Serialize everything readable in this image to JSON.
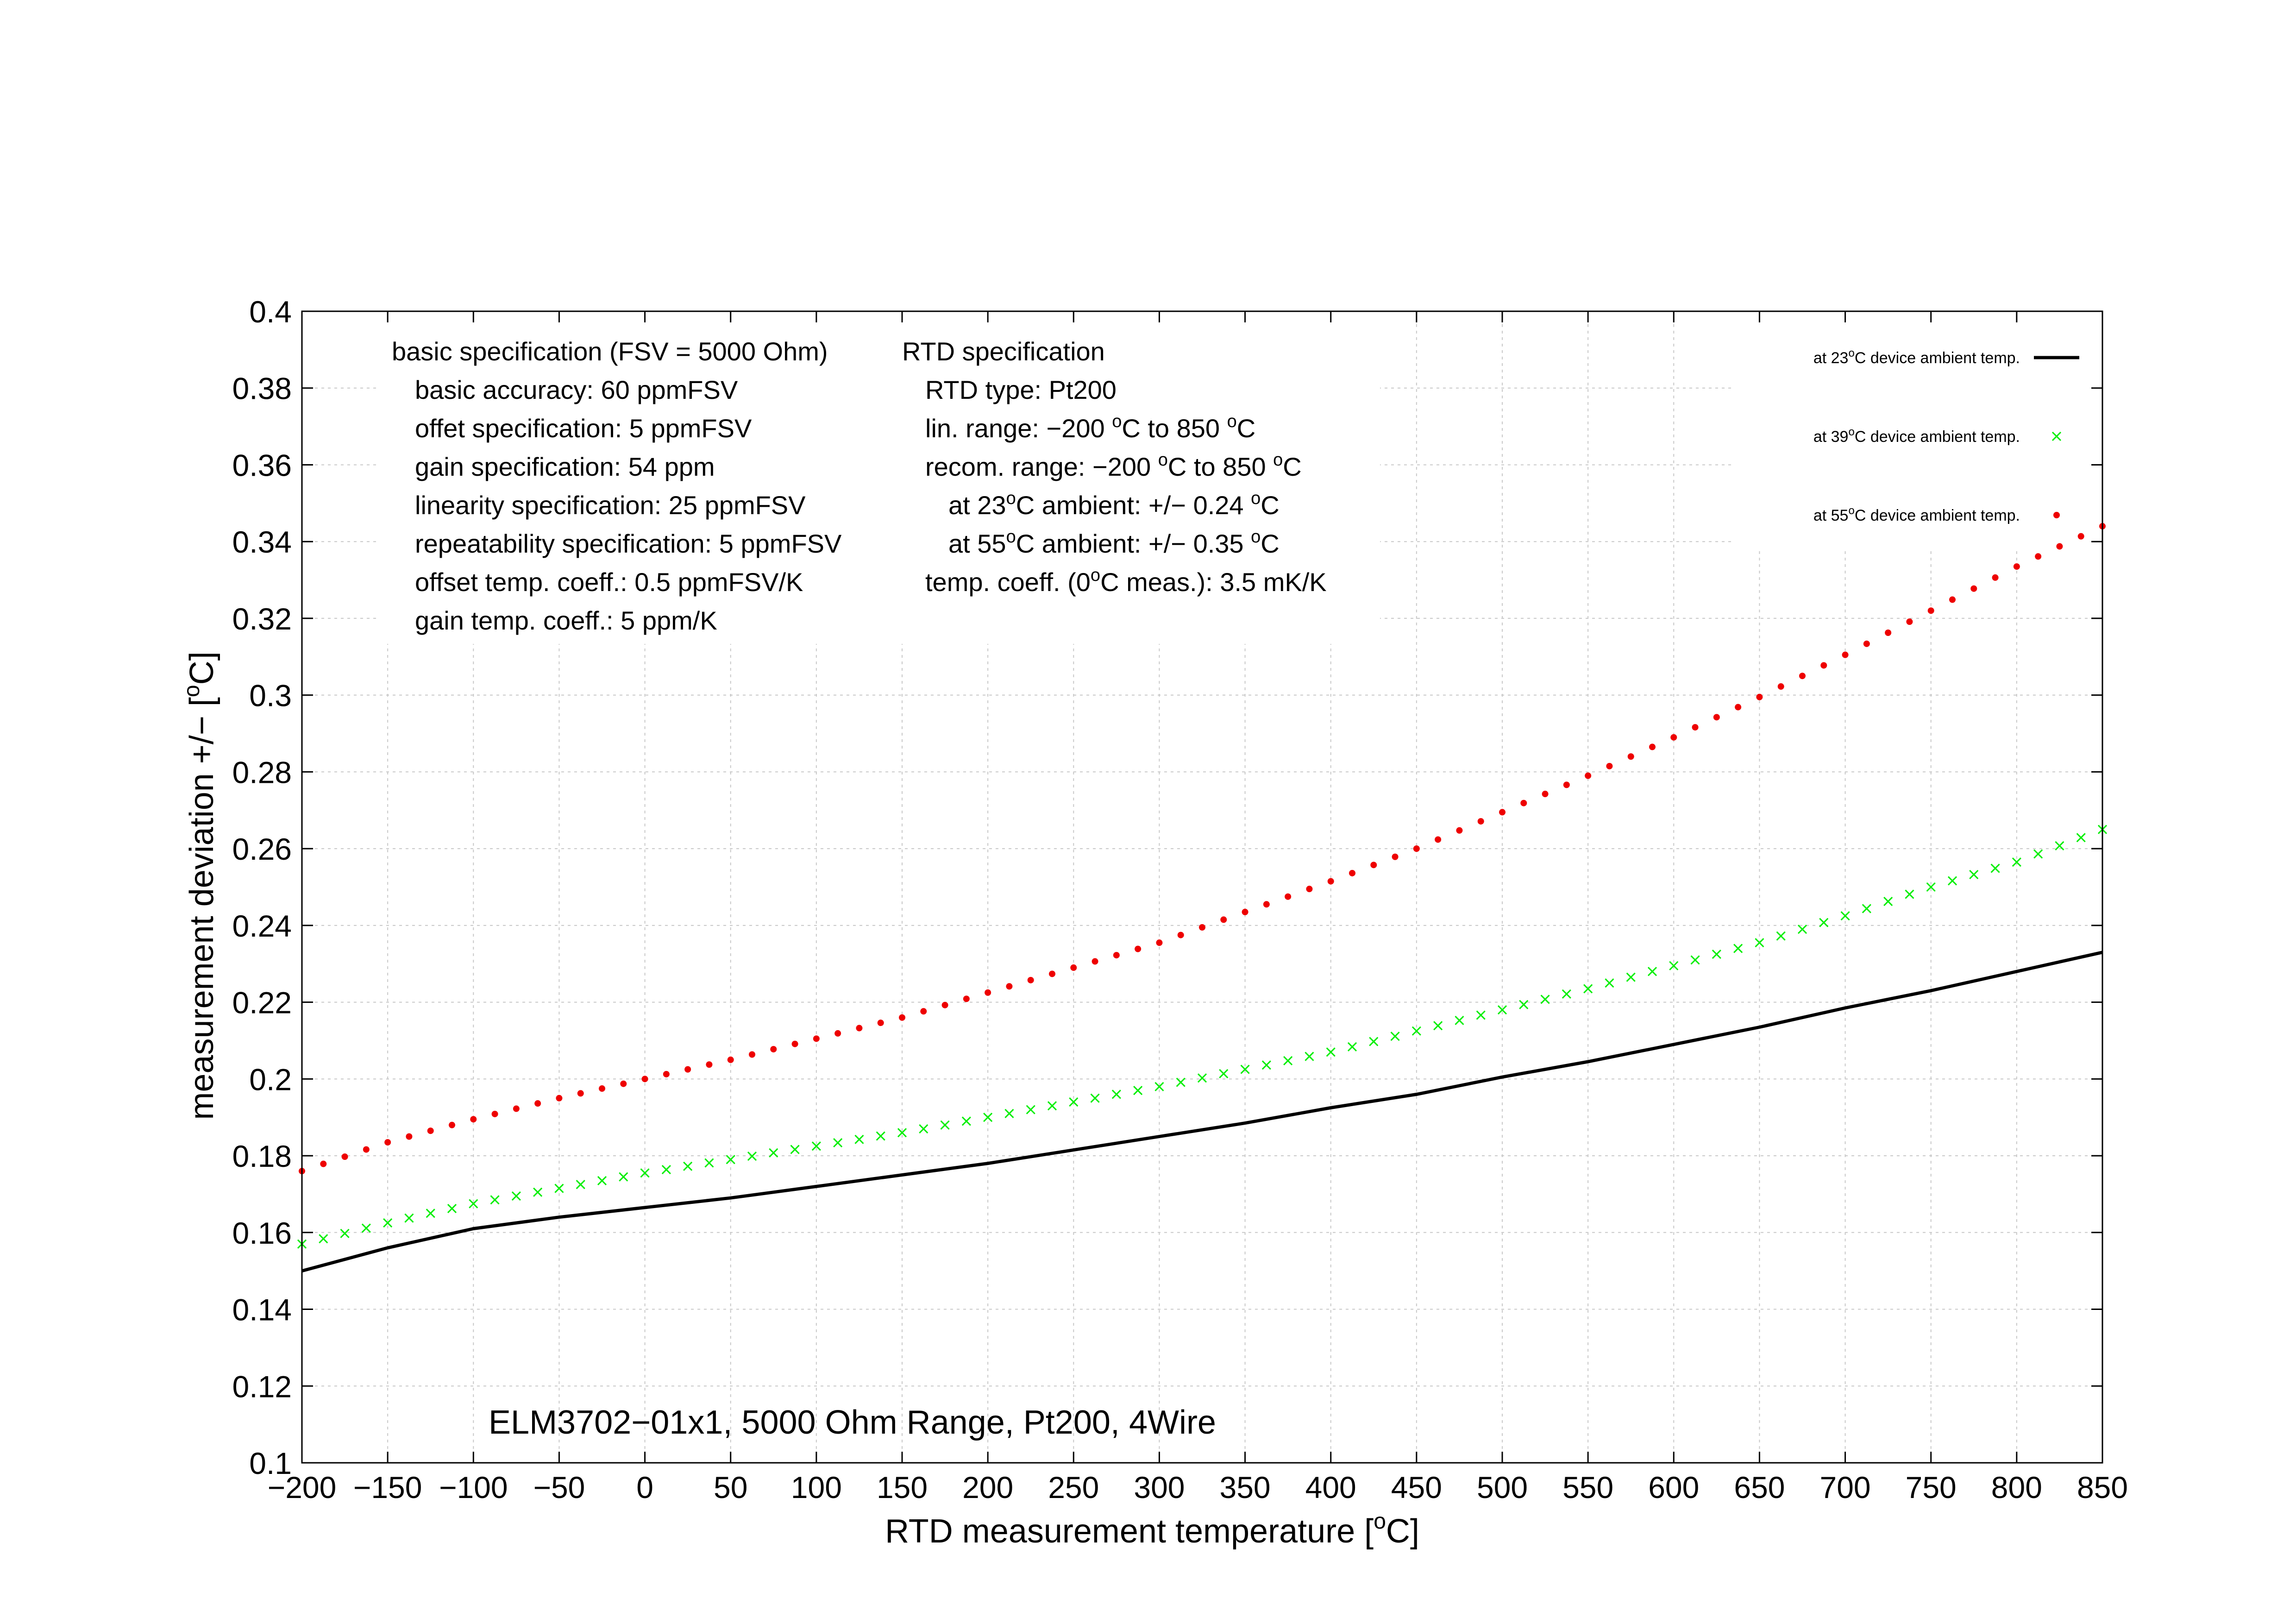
{
  "chart_data": {
    "type": "line",
    "title": "ELM3702−01x1, 5000 Ohm Range, Pt200, 4Wire",
    "xlabel": "RTD measurement temperature [",
    "xlabel_sup": "o",
    "xlabel_end": "C]",
    "ylabel": "measurement deviation +/− [",
    "ylabel_sup": "o",
    "ylabel_end": "C]",
    "xlim": [
      -200,
      850
    ],
    "ylim": [
      0.1,
      0.4
    ],
    "xticks": [
      "−200",
      "−150",
      "−100",
      "−50",
      "0",
      "50",
      "100",
      "150",
      "200",
      "250",
      "300",
      "350",
      "400",
      "450",
      "500",
      "550",
      "600",
      "650",
      "700",
      "750",
      "800",
      "850"
    ],
    "yticks": [
      "0.1",
      "0.12",
      "0.14",
      "0.16",
      "0.18",
      "0.2",
      "0.22",
      "0.24",
      "0.26",
      "0.28",
      "0.3",
      "0.32",
      "0.34",
      "0.36",
      "0.38",
      "0.4"
    ],
    "grid": true,
    "legend_position": "top-right",
    "x": [
      -200,
      -150,
      -100,
      -50,
      0,
      50,
      100,
      150,
      200,
      250,
      300,
      350,
      400,
      450,
      500,
      550,
      600,
      650,
      700,
      750,
      800,
      850
    ],
    "series": [
      {
        "name": "at 23°C device ambient temp.",
        "name_parts": [
          "at 23",
          "o",
          "C device ambient temp."
        ],
        "style": "line",
        "color": "#000000",
        "values": [
          0.15,
          0.156,
          0.161,
          0.164,
          0.1665,
          0.169,
          0.172,
          0.175,
          0.178,
          0.1815,
          0.185,
          0.1885,
          0.1925,
          0.196,
          0.2005,
          0.2045,
          0.209,
          0.2135,
          0.2185,
          0.223,
          0.228,
          0.233
        ]
      },
      {
        "name": "at 39°C device ambient temp.",
        "name_parts": [
          "at 39",
          "o",
          "C device ambient temp."
        ],
        "style": "cross",
        "color": "#00ee00",
        "values": [
          0.157,
          0.1625,
          0.1675,
          0.1715,
          0.1755,
          0.179,
          0.1825,
          0.186,
          0.19,
          0.194,
          0.198,
          0.2025,
          0.207,
          0.2125,
          0.218,
          0.2235,
          0.2295,
          0.2355,
          0.2425,
          0.25,
          0.2565,
          0.265
        ]
      },
      {
        "name": "at 55°C device ambient temp.",
        "name_parts": [
          "at 55",
          "o",
          "C device ambient temp."
        ],
        "style": "dot",
        "color": "#ee0000",
        "values": [
          0.176,
          0.1835,
          0.1895,
          0.195,
          0.2,
          0.205,
          0.2105,
          0.216,
          0.2225,
          0.229,
          0.2355,
          0.2435,
          0.2515,
          0.26,
          0.2695,
          0.279,
          0.289,
          0.2995,
          0.3105,
          0.322,
          0.3335,
          0.344
        ]
      }
    ],
    "annotations": {
      "basic": [
        {
          "indent": 0,
          "parts": [
            "basic specification (FSV = 5000 Ohm)"
          ]
        },
        {
          "indent": 1,
          "parts": [
            "basic accuracy: 60 ppmFSV"
          ]
        },
        {
          "indent": 1,
          "parts": [
            "offet specification: 5 ppmFSV"
          ]
        },
        {
          "indent": 1,
          "parts": [
            "gain specification: 54 ppm"
          ]
        },
        {
          "indent": 1,
          "parts": [
            "linearity specification: 25 ppmFSV"
          ]
        },
        {
          "indent": 1,
          "parts": [
            "repeatability specification: 5 ppmFSV"
          ]
        },
        {
          "indent": 1,
          "parts": [
            "offset temp. coeff.: 0.5 ppmFSV/K"
          ]
        },
        {
          "indent": 1,
          "parts": [
            "gain temp. coeff.: 5 ppm/K"
          ]
        }
      ],
      "rtd": [
        {
          "indent": 0,
          "parts": [
            "RTD specification"
          ]
        },
        {
          "indent": 1,
          "parts": [
            "RTD type: Pt200"
          ]
        },
        {
          "indent": 1,
          "parts": [
            "lin. range: −200 ",
            "o",
            "C to 850 ",
            "o",
            "C"
          ]
        },
        {
          "indent": 1,
          "parts": [
            "recom. range: −200 ",
            "o",
            "C to 850 ",
            "o",
            "C"
          ]
        },
        {
          "indent": 2,
          "parts": [
            "at 23",
            "o",
            "C ambient: +/− 0.24 ",
            "o",
            "C"
          ]
        },
        {
          "indent": 2,
          "parts": [
            "at 55",
            "o",
            "C ambient: +/− 0.35 ",
            "o",
            "C"
          ]
        },
        {
          "indent": 1,
          "parts": [
            "temp. coeff. (0",
            "o",
            "C meas.): 3.5 mK/K"
          ]
        }
      ]
    }
  }
}
